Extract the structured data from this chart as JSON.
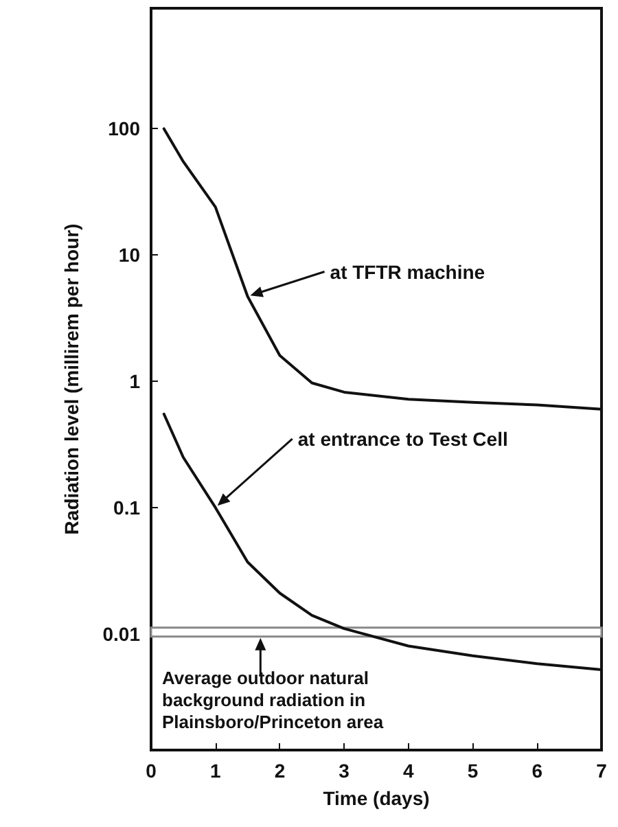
{
  "chart_data": {
    "type": "line",
    "xlabel": "Time (days)",
    "ylabel": "Radiation level (millirem per hour)",
    "xlim": [
      0,
      7
    ],
    "xticks": [
      0,
      1,
      2,
      3,
      4,
      5,
      6,
      7
    ],
    "ylim": [
      0.0012,
      900
    ],
    "yticks": [
      0.01,
      0.1,
      1,
      10,
      100
    ],
    "log": "y",
    "series": [
      {
        "color": "#111111",
        "x": [
          0.2,
          0.5,
          1,
          1.5,
          2,
          2.5,
          3,
          4,
          5,
          6,
          7
        ],
        "values": [
          100,
          55,
          24,
          4.7,
          1.6,
          0.97,
          0.82,
          0.72,
          0.68,
          0.65,
          0.6
        ]
      },
      {
        "color": "#111111",
        "x": [
          0.2,
          0.5,
          1,
          1.5,
          2,
          2.5,
          3,
          4,
          5,
          6,
          7
        ],
        "values": [
          0.55,
          0.25,
          0.1,
          0.037,
          0.021,
          0.014,
          0.011,
          0.008,
          0.0067,
          0.0058,
          0.0052
        ]
      }
    ],
    "bands": [
      {
        "axis": "y",
        "from": 0.0095,
        "to": 0.0112,
        "color": "#888888",
        "label": "Average outdoor natural background radiation in Plainsboro/Princeton area"
      }
    ],
    "annotations": [
      {
        "text": "at TFTR machine",
        "x": 1.5,
        "y": 4.7
      },
      {
        "text": "at entrance to Test Cell",
        "x": 1,
        "y": 0.1
      }
    ],
    "grid": false,
    "marker": "none",
    "line_style": "solid"
  }
}
